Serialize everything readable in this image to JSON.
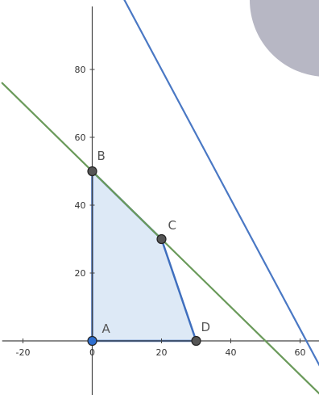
{
  "chart_data": {
    "type": "line",
    "xlim": [
      -26,
      66
    ],
    "ylim": [
      -10,
      103
    ],
    "grid": false,
    "x_ticks": [
      {
        "value": -20,
        "label": "-20"
      },
      {
        "value": 0,
        "label": "0"
      },
      {
        "value": 20,
        "label": "20"
      },
      {
        "value": 40,
        "label": "40"
      },
      {
        "value": 60,
        "label": "60"
      }
    ],
    "y_ticks": [
      {
        "value": 20,
        "label": "20"
      },
      {
        "value": 40,
        "label": "40"
      },
      {
        "value": 60,
        "label": "60"
      },
      {
        "value": 80,
        "label": "80"
      }
    ],
    "lines": [
      {
        "points": [
          [
            -26,
            76
          ],
          [
            66,
            -16
          ]
        ],
        "color": "#6a9a5a"
      },
      {
        "points": [
          [
            -26,
            168
          ],
          [
            66,
            -8
          ]
        ],
        "color": "#4a78c4"
      }
    ],
    "polygon": {
      "vertices": [
        [
          0,
          0
        ],
        [
          0,
          50
        ],
        [
          20,
          30
        ],
        [
          30,
          0
        ]
      ],
      "fill": "#dde9f6",
      "stroke": "#3f6fbe"
    },
    "points": [
      {
        "label": "A",
        "x": 0,
        "y": 0,
        "color": "#2f6fd0"
      },
      {
        "label": "B",
        "x": 0,
        "y": 50,
        "color": "#555555"
      },
      {
        "label": "C",
        "x": 20,
        "y": 30,
        "color": "#555555"
      },
      {
        "label": "D",
        "x": 30,
        "y": 0,
        "color": "#555555"
      }
    ],
    "corner_shape_color": "#b7b7c4"
  }
}
